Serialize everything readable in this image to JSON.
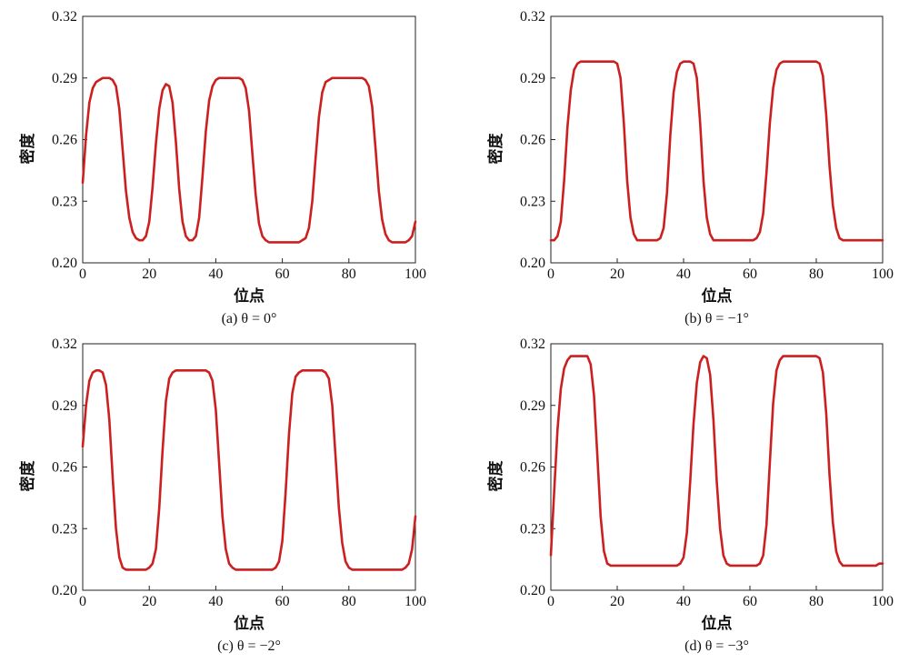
{
  "chart_data": [
    {
      "type": "line",
      "caption": "(a) θ = 0°",
      "xlabel": "位点",
      "ylabel": "密度",
      "xlim": [
        0,
        100
      ],
      "ylim": [
        0.2,
        0.32
      ],
      "xticks": [
        "0",
        "20",
        "40",
        "60",
        "80",
        "100"
      ],
      "yticks": [
        "0.20",
        "0.23",
        "0.26",
        "0.29",
        "0.32"
      ],
      "grid": false,
      "color": "#cc1f1f",
      "x": [
        0,
        1,
        2,
        3,
        4,
        5,
        6,
        7,
        8,
        9,
        10,
        11,
        12,
        13,
        14,
        15,
        16,
        17,
        18,
        19,
        20,
        21,
        22,
        23,
        24,
        25,
        26,
        27,
        28,
        29,
        30,
        31,
        32,
        33,
        34,
        35,
        36,
        37,
        38,
        39,
        40,
        41,
        42,
        43,
        44,
        45,
        46,
        47,
        48,
        49,
        50,
        51,
        52,
        53,
        54,
        55,
        56,
        57,
        58,
        59,
        60,
        61,
        62,
        63,
        64,
        65,
        66,
        67,
        68,
        69,
        70,
        71,
        72,
        73,
        74,
        75,
        76,
        77,
        78,
        79,
        80,
        81,
        82,
        83,
        84,
        85,
        86,
        87,
        88,
        89,
        90,
        91,
        92,
        93,
        94,
        95,
        96,
        97,
        98,
        99,
        100
      ],
      "y": [
        0.239,
        0.262,
        0.278,
        0.285,
        0.288,
        0.289,
        0.29,
        0.29,
        0.29,
        0.289,
        0.286,
        0.275,
        0.255,
        0.235,
        0.222,
        0.215,
        0.212,
        0.211,
        0.211,
        0.213,
        0.22,
        0.237,
        0.258,
        0.275,
        0.284,
        0.287,
        0.286,
        0.278,
        0.259,
        0.236,
        0.22,
        0.213,
        0.211,
        0.211,
        0.213,
        0.222,
        0.242,
        0.264,
        0.279,
        0.286,
        0.289,
        0.29,
        0.29,
        0.29,
        0.29,
        0.29,
        0.29,
        0.29,
        0.289,
        0.285,
        0.274,
        0.253,
        0.233,
        0.219,
        0.213,
        0.211,
        0.21,
        0.21,
        0.21,
        0.21,
        0.21,
        0.21,
        0.21,
        0.21,
        0.21,
        0.21,
        0.211,
        0.212,
        0.217,
        0.23,
        0.251,
        0.271,
        0.283,
        0.288,
        0.289,
        0.29,
        0.29,
        0.29,
        0.29,
        0.29,
        0.29,
        0.29,
        0.29,
        0.29,
        0.29,
        0.289,
        0.286,
        0.276,
        0.256,
        0.235,
        0.221,
        0.214,
        0.211,
        0.21,
        0.21,
        0.21,
        0.21,
        0.21,
        0.211,
        0.213,
        0.22
      ]
    },
    {
      "type": "line",
      "caption": "(b) θ = −1°",
      "xlabel": "位点",
      "ylabel": "密度",
      "xlim": [
        0,
        100
      ],
      "ylim": [
        0.2,
        0.32
      ],
      "xticks": [
        "0",
        "20",
        "40",
        "60",
        "80",
        "100"
      ],
      "yticks": [
        "0.20",
        "0.23",
        "0.26",
        "0.29",
        "0.32"
      ],
      "grid": false,
      "color": "#cc1f1f",
      "x": [
        0,
        1,
        2,
        3,
        4,
        5,
        6,
        7,
        8,
        9,
        10,
        11,
        12,
        13,
        14,
        15,
        16,
        17,
        18,
        19,
        20,
        21,
        22,
        23,
        24,
        25,
        26,
        27,
        28,
        29,
        30,
        31,
        32,
        33,
        34,
        35,
        36,
        37,
        38,
        39,
        40,
        41,
        42,
        43,
        44,
        45,
        46,
        47,
        48,
        49,
        50,
        51,
        52,
        53,
        54,
        55,
        56,
        57,
        58,
        59,
        60,
        61,
        62,
        63,
        64,
        65,
        66,
        67,
        68,
        69,
        70,
        71,
        72,
        73,
        74,
        75,
        76,
        77,
        78,
        79,
        80,
        81,
        82,
        83,
        84,
        85,
        86,
        87,
        88,
        89,
        90,
        91,
        92,
        93,
        94,
        95,
        96,
        97,
        98,
        99,
        100
      ],
      "y": [
        0.211,
        0.211,
        0.213,
        0.22,
        0.24,
        0.266,
        0.284,
        0.294,
        0.297,
        0.298,
        0.298,
        0.298,
        0.298,
        0.298,
        0.298,
        0.298,
        0.298,
        0.298,
        0.298,
        0.298,
        0.297,
        0.29,
        0.268,
        0.24,
        0.222,
        0.214,
        0.211,
        0.211,
        0.211,
        0.211,
        0.211,
        0.211,
        0.211,
        0.212,
        0.217,
        0.234,
        0.262,
        0.283,
        0.293,
        0.297,
        0.298,
        0.298,
        0.298,
        0.297,
        0.29,
        0.268,
        0.24,
        0.222,
        0.214,
        0.211,
        0.211,
        0.211,
        0.211,
        0.211,
        0.211,
        0.211,
        0.211,
        0.211,
        0.211,
        0.211,
        0.211,
        0.211,
        0.212,
        0.215,
        0.224,
        0.244,
        0.268,
        0.285,
        0.294,
        0.297,
        0.298,
        0.298,
        0.298,
        0.298,
        0.298,
        0.298,
        0.298,
        0.298,
        0.298,
        0.298,
        0.298,
        0.297,
        0.291,
        0.272,
        0.247,
        0.228,
        0.217,
        0.212,
        0.211,
        0.211,
        0.211,
        0.211,
        0.211,
        0.211,
        0.211,
        0.211,
        0.211,
        0.211,
        0.211,
        0.211,
        0.211
      ]
    },
    {
      "type": "line",
      "caption": "(c) θ = −2°",
      "xlabel": "位点",
      "ylabel": "密度",
      "xlim": [
        0,
        100
      ],
      "ylim": [
        0.2,
        0.32
      ],
      "xticks": [
        "0",
        "20",
        "40",
        "60",
        "80",
        "100"
      ],
      "yticks": [
        "0.20",
        "0.23",
        "0.26",
        "0.29",
        "0.32"
      ],
      "grid": false,
      "color": "#cc1f1f",
      "x": [
        0,
        1,
        2,
        3,
        4,
        5,
        6,
        7,
        8,
        9,
        10,
        11,
        12,
        13,
        14,
        15,
        16,
        17,
        18,
        19,
        20,
        21,
        22,
        23,
        24,
        25,
        26,
        27,
        28,
        29,
        30,
        31,
        32,
        33,
        34,
        35,
        36,
        37,
        38,
        39,
        40,
        41,
        42,
        43,
        44,
        45,
        46,
        47,
        48,
        49,
        50,
        51,
        52,
        53,
        54,
        55,
        56,
        57,
        58,
        59,
        60,
        61,
        62,
        63,
        64,
        65,
        66,
        67,
        68,
        69,
        70,
        71,
        72,
        73,
        74,
        75,
        76,
        77,
        78,
        79,
        80,
        81,
        82,
        83,
        84,
        85,
        86,
        87,
        88,
        89,
        90,
        91,
        92,
        93,
        94,
        95,
        96,
        97,
        98,
        99,
        100
      ],
      "y": [
        0.27,
        0.29,
        0.302,
        0.306,
        0.307,
        0.307,
        0.306,
        0.3,
        0.283,
        0.255,
        0.23,
        0.216,
        0.211,
        0.21,
        0.21,
        0.21,
        0.21,
        0.21,
        0.21,
        0.21,
        0.211,
        0.213,
        0.22,
        0.24,
        0.268,
        0.292,
        0.303,
        0.306,
        0.307,
        0.307,
        0.307,
        0.307,
        0.307,
        0.307,
        0.307,
        0.307,
        0.307,
        0.307,
        0.306,
        0.302,
        0.288,
        0.262,
        0.236,
        0.22,
        0.213,
        0.211,
        0.21,
        0.21,
        0.21,
        0.21,
        0.21,
        0.21,
        0.21,
        0.21,
        0.21,
        0.21,
        0.21,
        0.21,
        0.211,
        0.214,
        0.224,
        0.248,
        0.276,
        0.296,
        0.304,
        0.306,
        0.307,
        0.307,
        0.307,
        0.307,
        0.307,
        0.307,
        0.307,
        0.306,
        0.303,
        0.29,
        0.265,
        0.24,
        0.223,
        0.214,
        0.211,
        0.21,
        0.21,
        0.21,
        0.21,
        0.21,
        0.21,
        0.21,
        0.21,
        0.21,
        0.21,
        0.21,
        0.21,
        0.21,
        0.21,
        0.21,
        0.21,
        0.211,
        0.213,
        0.22,
        0.236
      ]
    },
    {
      "type": "line",
      "caption": "(d) θ = −3°",
      "xlabel": "位点",
      "ylabel": "密度",
      "xlim": [
        0,
        100
      ],
      "ylim": [
        0.2,
        0.32
      ],
      "xticks": [
        "0",
        "20",
        "40",
        "60",
        "80",
        "100"
      ],
      "yticks": [
        "0.20",
        "0.23",
        "0.26",
        "0.29",
        "0.32"
      ],
      "grid": false,
      "color": "#cc1f1f",
      "x": [
        0,
        1,
        2,
        3,
        4,
        5,
        6,
        7,
        8,
        9,
        10,
        11,
        12,
        13,
        14,
        15,
        16,
        17,
        18,
        19,
        20,
        21,
        22,
        23,
        24,
        25,
        26,
        27,
        28,
        29,
        30,
        31,
        32,
        33,
        34,
        35,
        36,
        37,
        38,
        39,
        40,
        41,
        42,
        43,
        44,
        45,
        46,
        47,
        48,
        49,
        50,
        51,
        52,
        53,
        54,
        55,
        56,
        57,
        58,
        59,
        60,
        61,
        62,
        63,
        64,
        65,
        66,
        67,
        68,
        69,
        70,
        71,
        72,
        73,
        74,
        75,
        76,
        77,
        78,
        79,
        80,
        81,
        82,
        83,
        84,
        85,
        86,
        87,
        88,
        89,
        90,
        91,
        92,
        93,
        94,
        95,
        96,
        97,
        98,
        99,
        100
      ],
      "y": [
        0.217,
        0.248,
        0.278,
        0.298,
        0.308,
        0.312,
        0.314,
        0.314,
        0.314,
        0.314,
        0.314,
        0.314,
        0.31,
        0.295,
        0.266,
        0.236,
        0.219,
        0.213,
        0.212,
        0.212,
        0.212,
        0.212,
        0.212,
        0.212,
        0.212,
        0.212,
        0.212,
        0.212,
        0.212,
        0.212,
        0.212,
        0.212,
        0.212,
        0.212,
        0.212,
        0.212,
        0.212,
        0.212,
        0.212,
        0.213,
        0.216,
        0.228,
        0.253,
        0.281,
        0.301,
        0.311,
        0.314,
        0.313,
        0.305,
        0.283,
        0.253,
        0.23,
        0.217,
        0.213,
        0.212,
        0.212,
        0.212,
        0.212,
        0.212,
        0.212,
        0.212,
        0.212,
        0.212,
        0.213,
        0.217,
        0.232,
        0.262,
        0.291,
        0.307,
        0.312,
        0.314,
        0.314,
        0.314,
        0.314,
        0.314,
        0.314,
        0.314,
        0.314,
        0.314,
        0.314,
        0.314,
        0.313,
        0.306,
        0.286,
        0.256,
        0.233,
        0.219,
        0.214,
        0.212,
        0.212,
        0.212,
        0.212,
        0.212,
        0.212,
        0.212,
        0.212,
        0.212,
        0.212,
        0.212,
        0.213,
        0.213
      ]
    }
  ]
}
